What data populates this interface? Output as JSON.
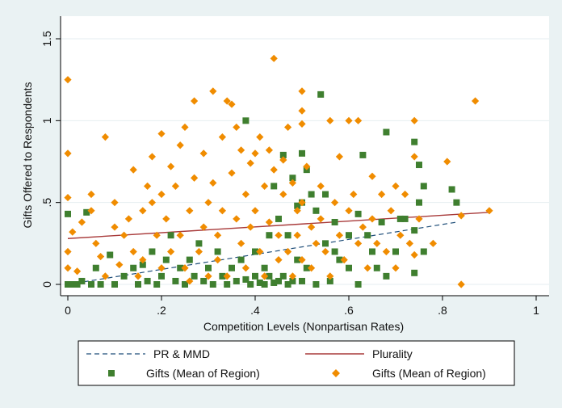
{
  "chart_data": {
    "type": "scatter",
    "title": "",
    "xlabel": "Competition Levels (Nonpartisan Rates)",
    "ylabel": "Gifts Offered to Respondents",
    "xlim": [
      0,
      1
    ],
    "ylim": [
      0,
      1.5
    ],
    "x_ticks": [
      {
        "value": 0,
        "label": "0"
      },
      {
        "value": 0.2,
        "label": ".2"
      },
      {
        "value": 0.4,
        "label": ".4"
      },
      {
        "value": 0.6,
        "label": ".6"
      },
      {
        "value": 0.8,
        "label": ".8"
      },
      {
        "value": 1,
        "label": "1"
      }
    ],
    "y_ticks": [
      {
        "value": 0,
        "label": "0"
      },
      {
        "value": 0.5,
        "label": ".5"
      },
      {
        "value": 1,
        "label": "1"
      },
      {
        "value": 1.5,
        "label": "1.5"
      }
    ],
    "grid": true,
    "legend_position": "bottom",
    "colors": {
      "pr_line": "#1f4e79",
      "plurality_line": "#a83a3a",
      "green_markers": "#3f7f2f",
      "orange_markers": "#f08c00",
      "plot_background": "#ffffff",
      "outer_background": "#eaf2f3",
      "grid": "#e6eef0"
    },
    "series": [
      {
        "name": "PR & MMD",
        "kind": "line",
        "style": "dashed",
        "color": "#1f4e79",
        "points": [
          [
            0,
            0
          ],
          [
            0.83,
            0.38
          ]
        ]
      },
      {
        "name": "Plurality",
        "kind": "line",
        "style": "solid",
        "color": "#a83a3a",
        "points": [
          [
            0,
            0.28
          ],
          [
            0.9,
            0.44
          ]
        ]
      },
      {
        "name": "Gifts (Mean of Region)",
        "kind": "scatter",
        "marker": "square",
        "color": "#3f7f2f",
        "points": [
          [
            0,
            0.43
          ],
          [
            0,
            0
          ],
          [
            0.01,
            0
          ],
          [
            0.02,
            0
          ],
          [
            0.03,
            0.02
          ],
          [
            0.04,
            0.44
          ],
          [
            0.05,
            0
          ],
          [
            0.06,
            0.1
          ],
          [
            0.07,
            0
          ],
          [
            0.09,
            0.18
          ],
          [
            0.1,
            0
          ],
          [
            0.12,
            0.05
          ],
          [
            0.14,
            0.1
          ],
          [
            0.15,
            0
          ],
          [
            0.16,
            0.12
          ],
          [
            0.17,
            0.02
          ],
          [
            0.18,
            0.2
          ],
          [
            0.19,
            0
          ],
          [
            0.2,
            0.05
          ],
          [
            0.21,
            0.15
          ],
          [
            0.22,
            0.3
          ],
          [
            0.23,
            0.02
          ],
          [
            0.24,
            0.1
          ],
          [
            0.25,
            0
          ],
          [
            0.26,
            0.15
          ],
          [
            0.27,
            0.05
          ],
          [
            0.28,
            0.25
          ],
          [
            0.29,
            0.02
          ],
          [
            0.3,
            0.1
          ],
          [
            0.31,
            0
          ],
          [
            0.32,
            0.2
          ],
          [
            0.33,
            0.05
          ],
          [
            0.34,
            0
          ],
          [
            0.35,
            0.1
          ],
          [
            0.36,
            0.02
          ],
          [
            0.37,
            0.15
          ],
          [
            0.38,
            1
          ],
          [
            0.38,
            0.03
          ],
          [
            0.39,
            0
          ],
          [
            0.4,
            0.05
          ],
          [
            0.4,
            0.2
          ],
          [
            0.41,
            0.01
          ],
          [
            0.42,
            0.1
          ],
          [
            0.42,
            0
          ],
          [
            0.43,
            0.3
          ],
          [
            0.43,
            0.05
          ],
          [
            0.44,
            0.01
          ],
          [
            0.44,
            0.6
          ],
          [
            0.45,
            0.02
          ],
          [
            0.45,
            0.4
          ],
          [
            0.46,
            0.79
          ],
          [
            0.46,
            0.05
          ],
          [
            0.47,
            0.3
          ],
          [
            0.47,
            0
          ],
          [
            0.48,
            0.65
          ],
          [
            0.48,
            0.02
          ],
          [
            0.49,
            0.15
          ],
          [
            0.49,
            0.48
          ],
          [
            0.5,
            0.5
          ],
          [
            0.5,
            0.8
          ],
          [
            0.5,
            0.02
          ],
          [
            0.51,
            0.7
          ],
          [
            0.51,
            0.1
          ],
          [
            0.52,
            0.55
          ],
          [
            0.53,
            0
          ],
          [
            0.53,
            0.45
          ],
          [
            0.54,
            1.16
          ],
          [
            0.55,
            0.55
          ],
          [
            0.55,
            0.25
          ],
          [
            0.56,
            0.02
          ],
          [
            0.57,
            0.38
          ],
          [
            0.57,
            0.2
          ],
          [
            0.58,
            0.15
          ],
          [
            0.6,
            0.3
          ],
          [
            0.6,
            0.1
          ],
          [
            0.62,
            0
          ],
          [
            0.62,
            0.43
          ],
          [
            0.63,
            0.79
          ],
          [
            0.64,
            0.3
          ],
          [
            0.65,
            0.2
          ],
          [
            0.66,
            0.1
          ],
          [
            0.67,
            0.38
          ],
          [
            0.68,
            0.93
          ],
          [
            0.68,
            0.05
          ],
          [
            0.7,
            0.2
          ],
          [
            0.71,
            0.4
          ],
          [
            0.72,
            0.4
          ],
          [
            0.74,
            0.87
          ],
          [
            0.74,
            0.33
          ],
          [
            0.74,
            0.07
          ],
          [
            0.75,
            0.73
          ],
          [
            0.75,
            0.5
          ],
          [
            0.76,
            0.6
          ],
          [
            0.76,
            0.2
          ],
          [
            0.82,
            0.58
          ],
          [
            0.83,
            0.5
          ]
        ]
      },
      {
        "name": "Gifts (Mean of Region)",
        "kind": "scatter",
        "marker": "diamond",
        "color": "#f08c00",
        "points": [
          [
            0,
            1.25
          ],
          [
            0,
            0.8
          ],
          [
            0,
            0.53
          ],
          [
            0,
            0.2
          ],
          [
            0,
            0.1
          ],
          [
            0.01,
            0.32
          ],
          [
            0.02,
            0.08
          ],
          [
            0.03,
            0.38
          ],
          [
            0.05,
            0.55
          ],
          [
            0.05,
            0.45
          ],
          [
            0.06,
            0.25
          ],
          [
            0.07,
            0.17
          ],
          [
            0.08,
            0.9
          ],
          [
            0.08,
            0.05
          ],
          [
            0.1,
            0.35
          ],
          [
            0.1,
            0.5
          ],
          [
            0.11,
            0.12
          ],
          [
            0.12,
            0.3
          ],
          [
            0.13,
            0.4
          ],
          [
            0.14,
            0.7
          ],
          [
            0.14,
            0.2
          ],
          [
            0.15,
            0.05
          ],
          [
            0.16,
            0.45
          ],
          [
            0.16,
            0.15
          ],
          [
            0.17,
            0.6
          ],
          [
            0.18,
            0.5
          ],
          [
            0.18,
            0.78
          ],
          [
            0.19,
            0.3
          ],
          [
            0.2,
            0.92
          ],
          [
            0.2,
            0.55
          ],
          [
            0.2,
            0.1
          ],
          [
            0.21,
            0.4
          ],
          [
            0.22,
            0.72
          ],
          [
            0.22,
            0.2
          ],
          [
            0.23,
            0.6
          ],
          [
            0.24,
            0.85
          ],
          [
            0.24,
            0.3
          ],
          [
            0.25,
            0.96
          ],
          [
            0.25,
            0.1
          ],
          [
            0.26,
            0.45
          ],
          [
            0.26,
            0.02
          ],
          [
            0.27,
            1.12
          ],
          [
            0.27,
            0.65
          ],
          [
            0.28,
            0.2
          ],
          [
            0.29,
            0.8
          ],
          [
            0.29,
            0.35
          ],
          [
            0.3,
            0.5
          ],
          [
            0.3,
            0.05
          ],
          [
            0.31,
            1.18
          ],
          [
            0.31,
            0.62
          ],
          [
            0.32,
            0.3
          ],
          [
            0.32,
            0.15
          ],
          [
            0.33,
            0.9
          ],
          [
            0.33,
            0.45
          ],
          [
            0.34,
            1.12
          ],
          [
            0.34,
            0.05
          ],
          [
            0.35,
            1.1
          ],
          [
            0.35,
            0.68
          ],
          [
            0.36,
            0.96
          ],
          [
            0.36,
            0.4
          ],
          [
            0.37,
            0.25
          ],
          [
            0.37,
            0.82
          ],
          [
            0.38,
            0.55
          ],
          [
            0.38,
            0.1
          ],
          [
            0.39,
            0.74
          ],
          [
            0.39,
            0.35
          ],
          [
            0.4,
            0.8
          ],
          [
            0.4,
            0.45
          ],
          [
            0.41,
            0.9
          ],
          [
            0.41,
            0.2
          ],
          [
            0.42,
            0.6
          ],
          [
            0.42,
            0.05
          ],
          [
            0.43,
            0.82
          ],
          [
            0.43,
            0.38
          ],
          [
            0.44,
            1.38
          ],
          [
            0.44,
            0.7
          ],
          [
            0.45,
            0.3
          ],
          [
            0.45,
            0.15
          ],
          [
            0.46,
            0.76
          ],
          [
            0.46,
            0.55
          ],
          [
            0.47,
            0.96
          ],
          [
            0.47,
            0.2
          ],
          [
            0.48,
            0.62
          ],
          [
            0.48,
            0.05
          ],
          [
            0.49,
            0.45
          ],
          [
            0.49,
            0.3
          ],
          [
            0.5,
            1.18
          ],
          [
            0.5,
            1.06
          ],
          [
            0.5,
            0.98
          ],
          [
            0.5,
            0.5
          ],
          [
            0.5,
            0.15
          ],
          [
            0.51,
            0.72
          ],
          [
            0.52,
            0.35
          ],
          [
            0.52,
            0.1
          ],
          [
            0.53,
            0.25
          ],
          [
            0.54,
            0.6
          ],
          [
            0.54,
            0.4
          ],
          [
            0.55,
            0.2
          ],
          [
            0.56,
            1
          ],
          [
            0.56,
            0.05
          ],
          [
            0.57,
            0.5
          ],
          [
            0.58,
            0.78
          ],
          [
            0.58,
            0.3
          ],
          [
            0.59,
            0.15
          ],
          [
            0.6,
            1
          ],
          [
            0.6,
            0.45
          ],
          [
            0.61,
            0.55
          ],
          [
            0.62,
            1
          ],
          [
            0.62,
            0.25
          ],
          [
            0.63,
            0.35
          ],
          [
            0.64,
            0.1
          ],
          [
            0.65,
            0.66
          ],
          [
            0.65,
            0.4
          ],
          [
            0.66,
            0.25
          ],
          [
            0.67,
            0.55
          ],
          [
            0.68,
            0.2
          ],
          [
            0.69,
            0.45
          ],
          [
            0.7,
            0.6
          ],
          [
            0.7,
            0.1
          ],
          [
            0.71,
            0.3
          ],
          [
            0.72,
            0.55
          ],
          [
            0.73,
            0.25
          ],
          [
            0.74,
            1
          ],
          [
            0.74,
            0.78
          ],
          [
            0.74,
            0.18
          ],
          [
            0.75,
            0.4
          ],
          [
            0.78,
            0.25
          ],
          [
            0.81,
            0.75
          ],
          [
            0.84,
            0
          ],
          [
            0.84,
            0.42
          ],
          [
            0.87,
            1.12
          ],
          [
            0.9,
            0.45
          ]
        ]
      }
    ]
  }
}
